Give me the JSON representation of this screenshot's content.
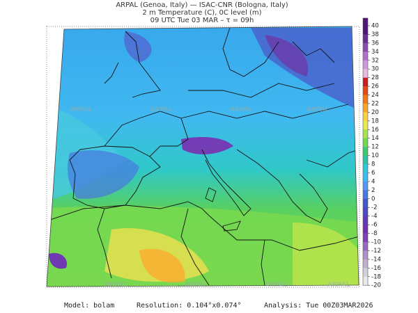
{
  "header": {
    "lines": [
      "ARPAL (Genoa, Italy)  —  ISAC-CNR (Bologna, Italy)",
      "2 m Temperature (C), 0C level (m)",
      "09 UTC Tue 03 MAR  –  τ = 09h"
    ]
  },
  "colorbar": {
    "ticks": [
      40,
      38,
      36,
      34,
      32,
      30,
      28,
      26,
      24,
      22,
      20,
      18,
      16,
      14,
      12,
      10,
      8,
      6,
      4,
      2,
      0,
      -2,
      -4,
      -6,
      -8,
      -10,
      -12,
      -14,
      -16,
      -18,
      -20
    ],
    "colors": [
      "#4b1678",
      "#6a2c96",
      "#8a4cb4",
      "#b070cc",
      "#d098dc",
      "#e8b8e0",
      "#c81e1e",
      "#e04a1a",
      "#f07a1a",
      "#f8a828",
      "#f8d040",
      "#e8e850",
      "#a8e050",
      "#70d850",
      "#40c870",
      "#30c0a8",
      "#30c8d8",
      "#40b8f0",
      "#5098f0",
      "#4878e0",
      "#4058c8",
      "#5048c0",
      "#6038b8",
      "#7030b0",
      "#8040b8",
      "#9868c0",
      "#b090c8",
      "#c0b0d0",
      "#d0d0d8",
      "#e8e8ec"
    ]
  },
  "watermarks": [
    "ARPAL",
    "ARPAL",
    "ARPAL",
    "ARPAL",
    "ARPAL",
    "ARPAL",
    "ARPAL",
    "ARPAL"
  ],
  "footer": {
    "model": "Model: bolam",
    "resolution": "Resolution: 0.104°x0.074°",
    "analysis": "Analysis: Tue 00Z03MAR2026"
  }
}
